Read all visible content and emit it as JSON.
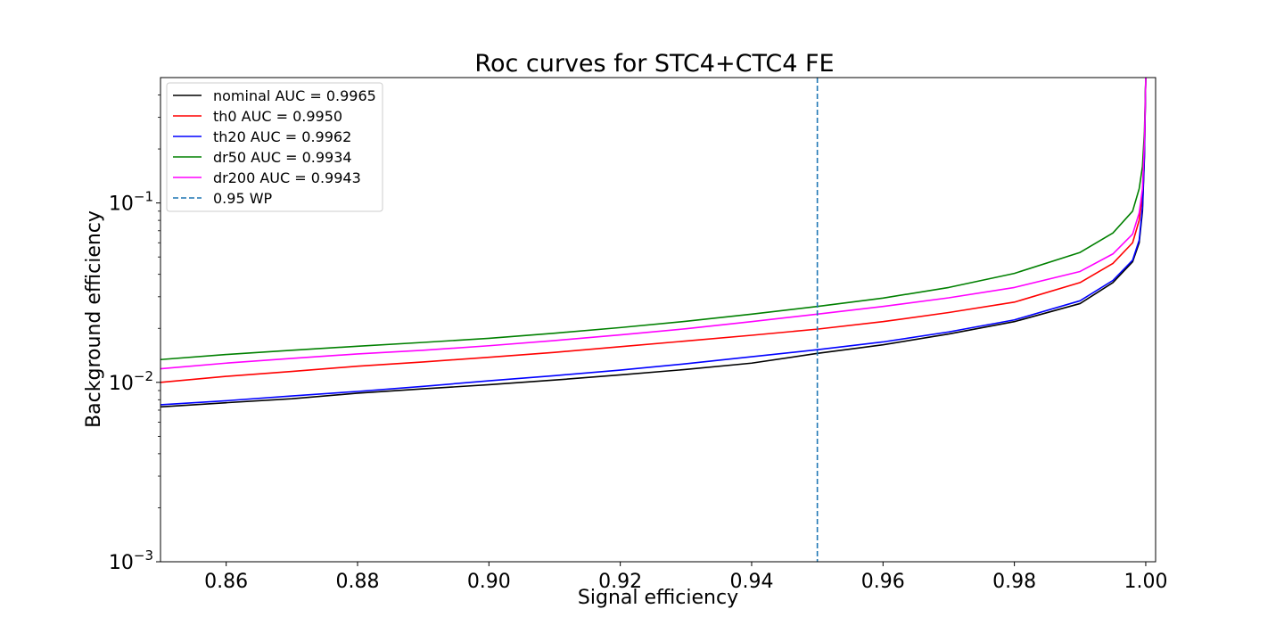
{
  "chart_data": {
    "type": "line",
    "title": "Roc curves for STC4+CTC4 FE",
    "xlabel": "Signal efficiency",
    "ylabel": "Background efficiency",
    "xlim": [
      0.85,
      1.0015
    ],
    "ylim": [
      0.001,
      0.5
    ],
    "yscale": "log",
    "grid": false,
    "legend_position": "upper-left",
    "x_ticks": [
      0.86,
      0.88,
      0.9,
      0.92,
      0.94,
      0.96,
      0.98,
      1.0
    ],
    "x_tick_labels": [
      "0.86",
      "0.88",
      "0.90",
      "0.92",
      "0.94",
      "0.96",
      "0.98",
      "1.00"
    ],
    "y_ticks": [
      0.001,
      0.01,
      0.1
    ],
    "y_tick_labels": [
      {
        "base": "10",
        "exp": "−3"
      },
      {
        "base": "10",
        "exp": "−2"
      },
      {
        "base": "10",
        "exp": "−1"
      }
    ],
    "series": [
      {
        "name": "nominal AUC = 0.9965",
        "color": "#000000",
        "x": [
          0.85,
          0.86,
          0.87,
          0.88,
          0.89,
          0.9,
          0.91,
          0.92,
          0.93,
          0.94,
          0.95,
          0.96,
          0.97,
          0.98,
          0.99,
          0.995,
          0.998,
          0.999,
          0.9995,
          0.9998,
          1.0
        ],
        "y": [
          0.0073,
          0.0077,
          0.0081,
          0.0087,
          0.0092,
          0.0097,
          0.0103,
          0.011,
          0.0118,
          0.0128,
          0.0145,
          0.0162,
          0.0186,
          0.0218,
          0.0275,
          0.036,
          0.047,
          0.06,
          0.09,
          0.18,
          0.5
        ]
      },
      {
        "name": "th0 AUC = 0.9950",
        "color": "#ff0000",
        "x": [
          0.85,
          0.86,
          0.87,
          0.88,
          0.89,
          0.9,
          0.91,
          0.92,
          0.93,
          0.94,
          0.95,
          0.96,
          0.97,
          0.98,
          0.99,
          0.995,
          0.998,
          0.999,
          0.9995,
          0.9998,
          1.0
        ],
        "y": [
          0.01,
          0.0108,
          0.0115,
          0.0123,
          0.013,
          0.0138,
          0.0147,
          0.0158,
          0.017,
          0.0183,
          0.0198,
          0.0218,
          0.0245,
          0.028,
          0.036,
          0.046,
          0.06,
          0.08,
          0.11,
          0.2,
          0.5
        ]
      },
      {
        "name": "th20 AUC = 0.9962",
        "color": "#0000ff",
        "x": [
          0.85,
          0.86,
          0.87,
          0.88,
          0.89,
          0.9,
          0.91,
          0.92,
          0.93,
          0.94,
          0.95,
          0.96,
          0.97,
          0.98,
          0.99,
          0.995,
          0.998,
          0.999,
          0.9995,
          0.9998,
          1.0
        ],
        "y": [
          0.0075,
          0.0079,
          0.0084,
          0.0089,
          0.0095,
          0.0102,
          0.0109,
          0.0117,
          0.0127,
          0.0139,
          0.0152,
          0.0168,
          0.0191,
          0.0223,
          0.0285,
          0.037,
          0.048,
          0.062,
          0.095,
          0.19,
          0.5
        ]
      },
      {
        "name": "dr50 AUC = 0.9934",
        "color": "#008000",
        "x": [
          0.85,
          0.86,
          0.87,
          0.88,
          0.89,
          0.9,
          0.91,
          0.92,
          0.93,
          0.94,
          0.95,
          0.96,
          0.97,
          0.98,
          0.99,
          0.995,
          0.998,
          0.999,
          0.9995,
          0.9998,
          1.0
        ],
        "y": [
          0.0134,
          0.0143,
          0.0151,
          0.0159,
          0.0167,
          0.0176,
          0.0188,
          0.0202,
          0.0219,
          0.024,
          0.0265,
          0.0295,
          0.0338,
          0.0405,
          0.053,
          0.068,
          0.09,
          0.12,
          0.16,
          0.25,
          0.5
        ]
      },
      {
        "name": "dr200 AUC = 0.9943",
        "color": "#ff00ff",
        "x": [
          0.85,
          0.86,
          0.87,
          0.88,
          0.89,
          0.9,
          0.91,
          0.92,
          0.93,
          0.94,
          0.95,
          0.96,
          0.97,
          0.98,
          0.99,
          0.995,
          0.998,
          0.999,
          0.9995,
          0.9998,
          1.0
        ],
        "y": [
          0.0119,
          0.0128,
          0.0136,
          0.0144,
          0.0151,
          0.016,
          0.0171,
          0.0184,
          0.0199,
          0.0218,
          0.024,
          0.0265,
          0.0296,
          0.0338,
          0.0415,
          0.052,
          0.067,
          0.088,
          0.12,
          0.22,
          0.5
        ]
      }
    ],
    "reference_lines": [
      {
        "name": "0.95 WP",
        "orientation": "vertical",
        "x": 0.95,
        "color": "#1f77b4",
        "style": "dashed"
      }
    ]
  }
}
